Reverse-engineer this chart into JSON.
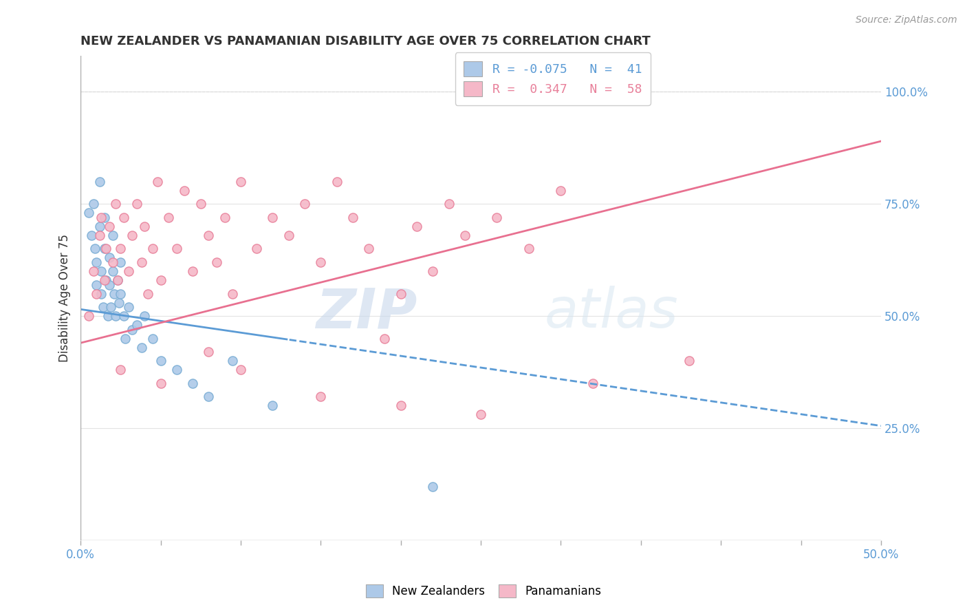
{
  "title": "NEW ZEALANDER VS PANAMANIAN DISABILITY AGE OVER 75 CORRELATION CHART",
  "source": "Source: ZipAtlas.com",
  "ylabel": "Disability Age Over 75",
  "xlim": [
    0.0,
    0.5
  ],
  "ylim": [
    0.0,
    1.08
  ],
  "watermark_zip": "ZIP",
  "watermark_atlas": "atlas",
  "nz_color": "#adc9e8",
  "pan_color": "#f5b8c8",
  "nz_edge_color": "#7aadd4",
  "pan_edge_color": "#e8809a",
  "nz_line_color": "#5b9bd5",
  "pan_line_color": "#e87090",
  "background_color": "#ffffff",
  "grid_color": "#dddddd",
  "tick_color": "#5b9bd5",
  "title_color": "#333333",
  "source_color": "#999999"
}
